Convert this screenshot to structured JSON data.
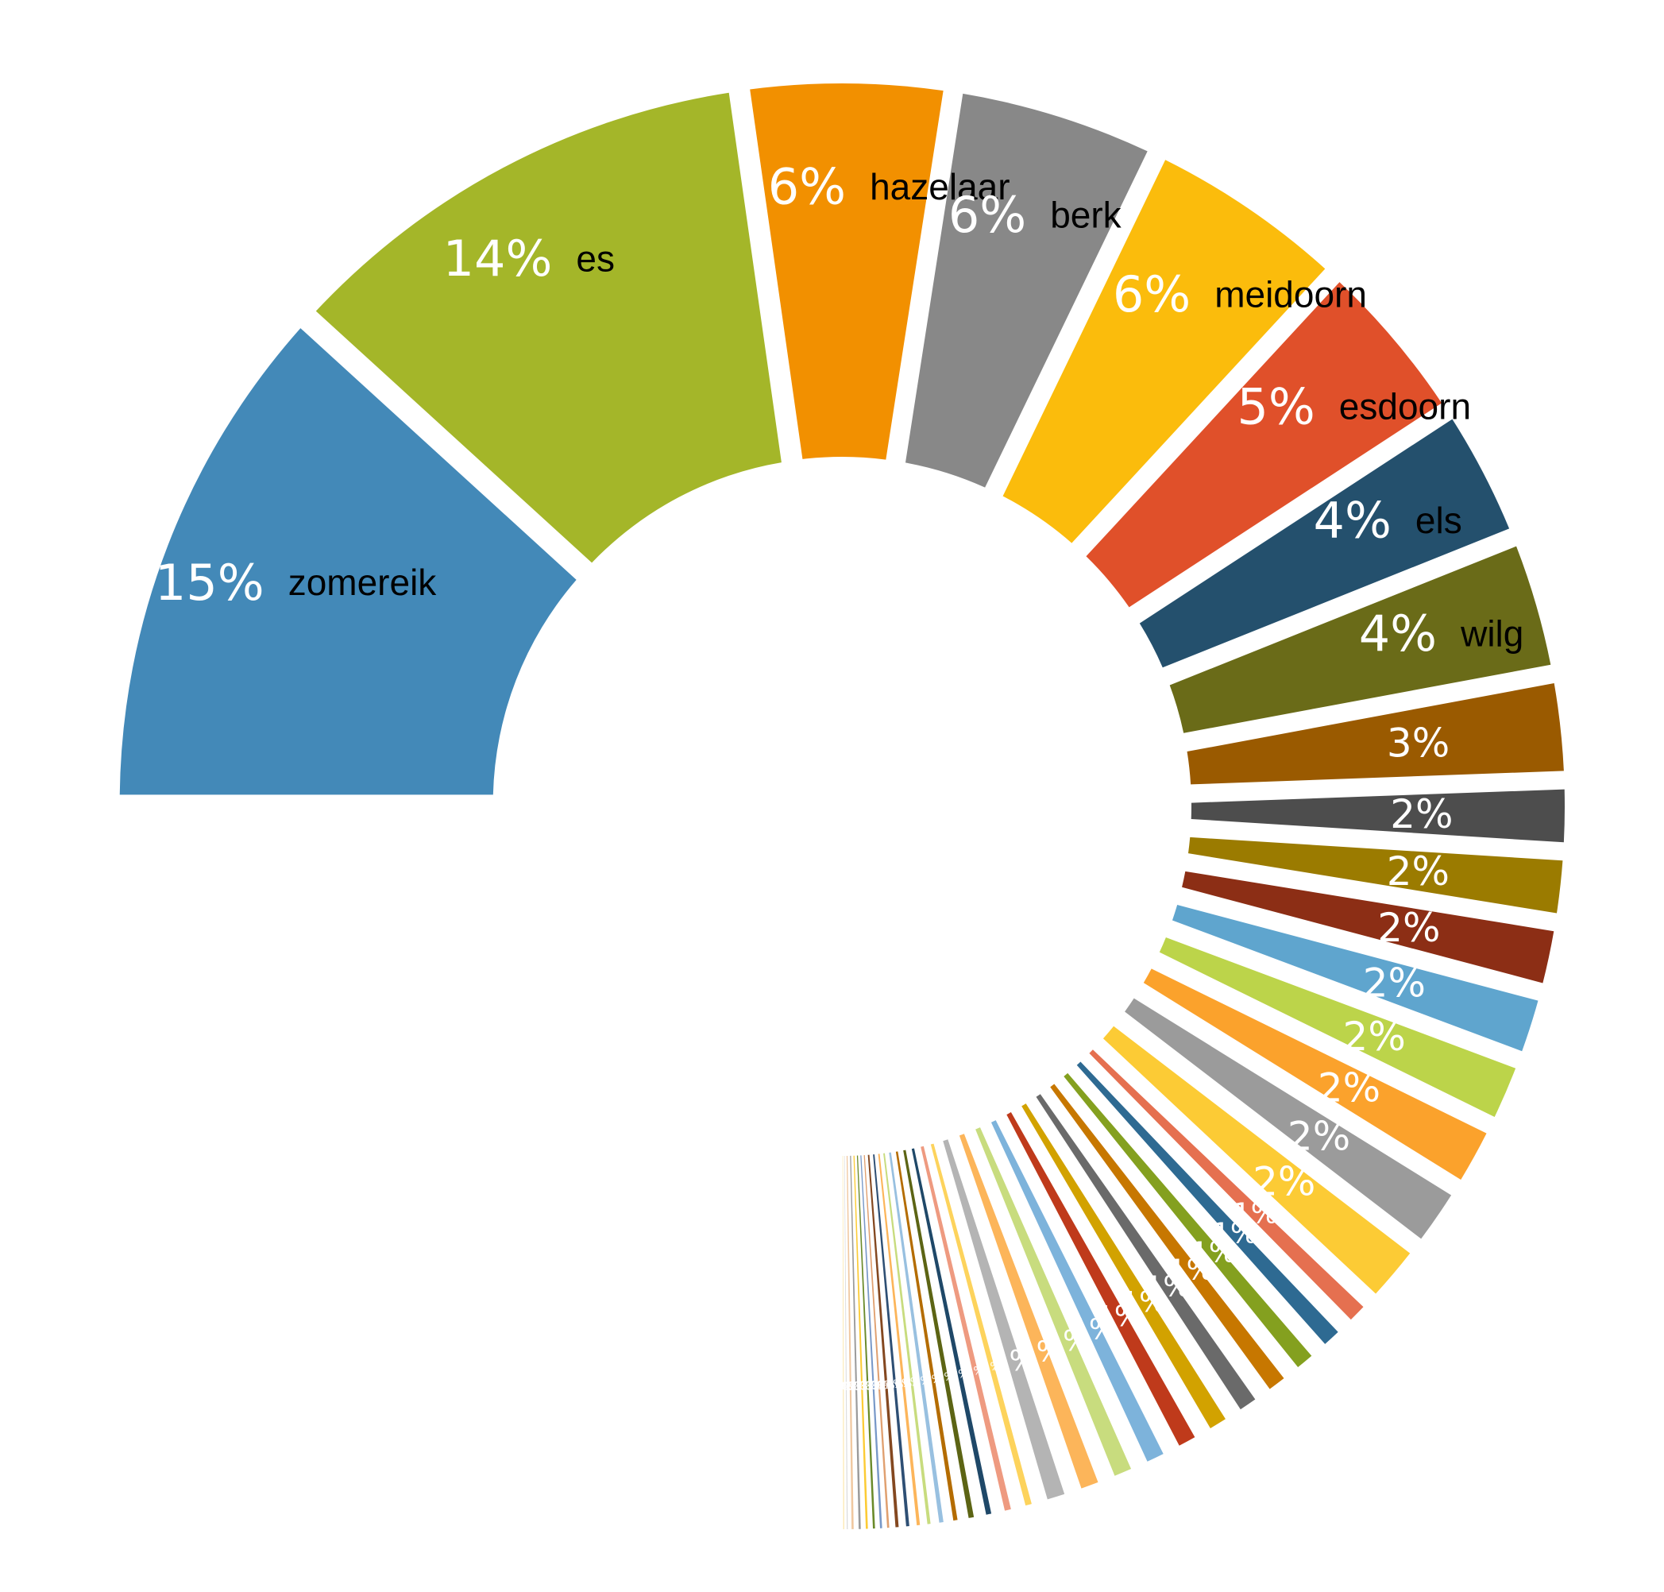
{
  "chart_data": {
    "type": "pie",
    "variant": "donut",
    "exploded": true,
    "labels_shown": "percent and category name on the large slices; percent only on the small slices",
    "slices": [
      {
        "label": "zomereik",
        "value": 15,
        "percent_label": "15%",
        "color": "#4389B8"
      },
      {
        "label": "es",
        "value": 14,
        "percent_label": "14%",
        "color": "#A4B629"
      },
      {
        "label": "hazelaar",
        "value": 6,
        "percent_label": "6%",
        "color": "#F29000"
      },
      {
        "label": "berk",
        "value": 6,
        "percent_label": "6%",
        "color": "#888888"
      },
      {
        "label": "meidoorn",
        "value": 6,
        "percent_label": "6%",
        "color": "#FBBC0C"
      },
      {
        "label": "esdoorn",
        "value": 5,
        "percent_label": "5%",
        "color": "#E0502A"
      },
      {
        "label": "els",
        "value": 4,
        "percent_label": "4%",
        "color": "#24506D"
      },
      {
        "label": "wilg",
        "value": 4,
        "percent_label": "4%",
        "color": "#6A6B18"
      },
      {
        "label": "",
        "value": 3,
        "percent_label": "3%",
        "color": "#9A5A00"
      },
      {
        "label": "",
        "value": 2,
        "percent_label": "2%",
        "color": "#4D4D4D"
      },
      {
        "label": "",
        "value": 2,
        "percent_label": "2%",
        "color": "#9B7B00"
      },
      {
        "label": "",
        "value": 2,
        "percent_label": "2%",
        "color": "#8C2E15"
      },
      {
        "label": "",
        "value": 2,
        "percent_label": "2%",
        "color": "#5FA5CE"
      },
      {
        "label": "",
        "value": 2,
        "percent_label": "2%",
        "color": "#BCD44A"
      },
      {
        "label": "",
        "value": 2,
        "percent_label": "2%",
        "color": "#FBA22C"
      },
      {
        "label": "",
        "value": 2,
        "percent_label": "2%",
        "color": "#9B9B9B"
      },
      {
        "label": "",
        "value": 2,
        "percent_label": "2%",
        "color": "#FCCB35"
      },
      {
        "label": "",
        "value": 1,
        "percent_label": "1%",
        "color": "#E57050"
      },
      {
        "label": "",
        "value": 1,
        "percent_label": "1%",
        "color": "#2E6A92"
      },
      {
        "label": "",
        "value": 1,
        "percent_label": "1%",
        "color": "#84A01F"
      },
      {
        "label": "",
        "value": 1,
        "percent_label": "1%",
        "color": "#C77700"
      },
      {
        "label": "",
        "value": 1,
        "percent_label": "1%",
        "color": "#6A6A6A"
      },
      {
        "label": "",
        "value": 1,
        "percent_label": "1%",
        "color": "#D2A200"
      },
      {
        "label": "",
        "value": 1,
        "percent_label": "1%",
        "color": "#BF3A1B"
      },
      {
        "label": "",
        "value": 1,
        "percent_label": "1%",
        "color": "#7DB3DB"
      },
      {
        "label": "",
        "value": 1,
        "percent_label": "1%",
        "color": "#C8DC7E"
      },
      {
        "label": "",
        "value": 1,
        "percent_label": "1%",
        "color": "#FCB55A"
      },
      {
        "label": "",
        "value": 1,
        "percent_label": "1%",
        "color": "#B4B4B4"
      },
      {
        "label": "",
        "value": 0.6,
        "percent_label": "1%",
        "color": "#FDD35C"
      },
      {
        "label": "",
        "value": 0.6,
        "percent_label": "1%",
        "color": "#EE9A80"
      },
      {
        "label": "",
        "value": 0.5,
        "percent_label": "0%",
        "color": "#1F4868"
      },
      {
        "label": "",
        "value": 0.5,
        "percent_label": "0%",
        "color": "#5C6414"
      },
      {
        "label": "",
        "value": 0.4,
        "percent_label": "0%",
        "color": "#B46C00"
      },
      {
        "label": "",
        "value": 0.4,
        "percent_label": "0%",
        "color": "#98C0E0"
      },
      {
        "label": "",
        "value": 0.3,
        "percent_label": "0%",
        "color": "#C8DC7E"
      },
      {
        "label": "",
        "value": 0.3,
        "percent_label": "0%",
        "color": "#FCB55A"
      },
      {
        "label": "",
        "value": 0.3,
        "percent_label": "0%",
        "color": "#2E4F74"
      },
      {
        "label": "",
        "value": 0.3,
        "percent_label": "0%",
        "color": "#844820"
      },
      {
        "label": "",
        "value": 0.2,
        "percent_label": "0%",
        "color": "#E0A070"
      },
      {
        "label": "",
        "value": 0.2,
        "percent_label": "0%",
        "color": "#7898C8"
      },
      {
        "label": "",
        "value": 0.2,
        "percent_label": "0%",
        "color": "#6A8A2A"
      },
      {
        "label": "",
        "value": 0.2,
        "percent_label": "0%",
        "color": "#FCCB35"
      },
      {
        "label": "",
        "value": 0.2,
        "percent_label": "0%",
        "color": "#9B9B9B"
      },
      {
        "label": "",
        "value": 0.2,
        "percent_label": "0%",
        "color": "#F0C8A0"
      },
      {
        "label": "",
        "value": 0.1,
        "percent_label": "0%",
        "color": "#DCDCDC"
      },
      {
        "label": "",
        "value": 0.1,
        "percent_label": "0%",
        "color": "#FCE8B0"
      }
    ]
  }
}
